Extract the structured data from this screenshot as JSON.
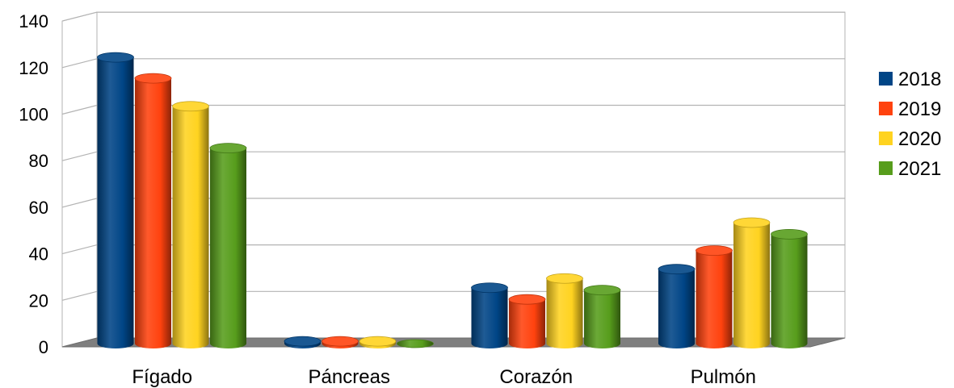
{
  "chart_data": {
    "type": "bar",
    "categories": [
      "Fígado",
      "Páncreas",
      "Corazón",
      "Pulmón"
    ],
    "series": [
      {
        "name": "2018",
        "values": [
          123,
          1,
          24,
          32
        ]
      },
      {
        "name": "2019",
        "values": [
          114,
          1,
          19,
          40
        ]
      },
      {
        "name": "2020",
        "values": [
          102,
          1,
          28,
          52
        ]
      },
      {
        "name": "2021",
        "values": [
          84,
          0,
          23,
          47
        ]
      }
    ],
    "yticks": [
      "0",
      "20",
      "40",
      "60",
      "80",
      "100",
      "120",
      "140"
    ],
    "ylim": [
      0,
      140
    ],
    "grid": true,
    "legend_position": "right",
    "colors": [
      "#004586",
      "#ff420e",
      "#ffd320",
      "#579d1c"
    ]
  }
}
